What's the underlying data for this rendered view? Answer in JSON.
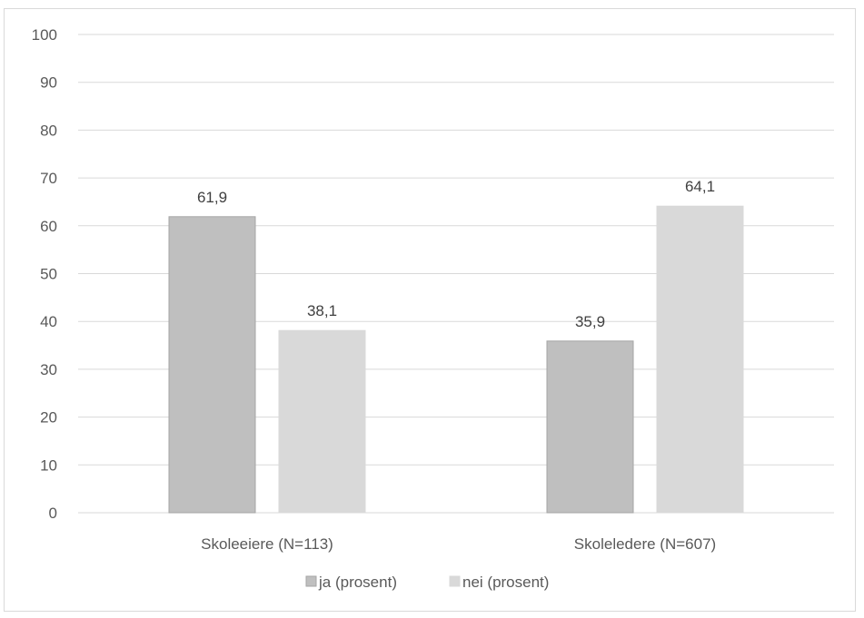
{
  "chart_data": {
    "type": "bar",
    "categories": [
      "Skoleeiere (N=113)",
      "Skoleledere (N=607)"
    ],
    "series": [
      {
        "name": "ja (prosent)",
        "values": [
          61.9,
          35.9
        ],
        "labels": [
          "61,9",
          "35,9"
        ],
        "color": "#bfbfbf",
        "stroke": "#a6a6a6"
      },
      {
        "name": "nei (prosent)",
        "values": [
          38.1,
          64.1
        ],
        "labels": [
          "38,1",
          "64,1"
        ],
        "color": "#d9d9d9",
        "stroke": "#d9d9d9"
      }
    ],
    "yticks": [
      "0",
      "10",
      "20",
      "30",
      "40",
      "50",
      "60",
      "70",
      "80",
      "90",
      "100"
    ],
    "ylim": [
      0,
      100
    ],
    "grid": true,
    "legend_position": "bottom"
  }
}
